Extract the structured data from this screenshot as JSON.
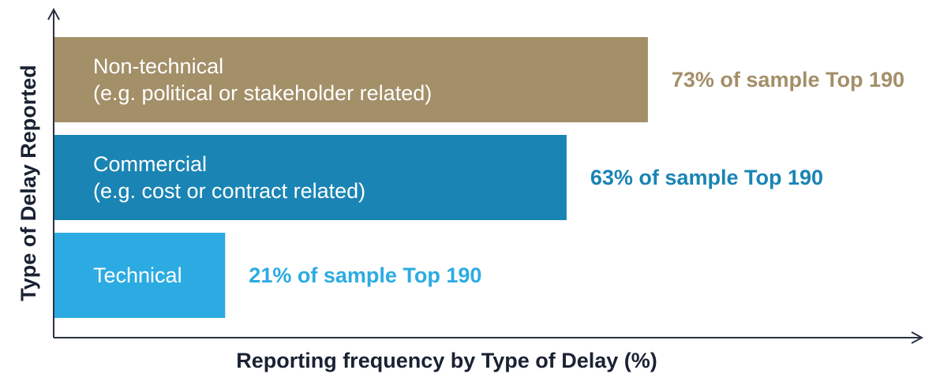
{
  "chart_data": {
    "type": "bar",
    "orientation": "horizontal",
    "xlabel": "Reporting frequency by Type of Delay (%)",
    "ylabel": "Type of Delay Reported",
    "xlim": [
      0,
      100
    ],
    "bars": [
      {
        "lines": [
          "Non-technical",
          "(e.g. political or stakeholder related)"
        ],
        "value": 73,
        "value_label": "73% of sample Top 190",
        "color": "#a38f68"
      },
      {
        "lines": [
          "Commercial",
          "(e.g. cost or contract related)"
        ],
        "value": 63,
        "value_label": "63% of sample Top 190",
        "color": "#1a84b4"
      },
      {
        "lines": [
          "Technical"
        ],
        "value": 21,
        "value_label": "21% of sample Top 190",
        "color": "#2babe2"
      }
    ]
  }
}
